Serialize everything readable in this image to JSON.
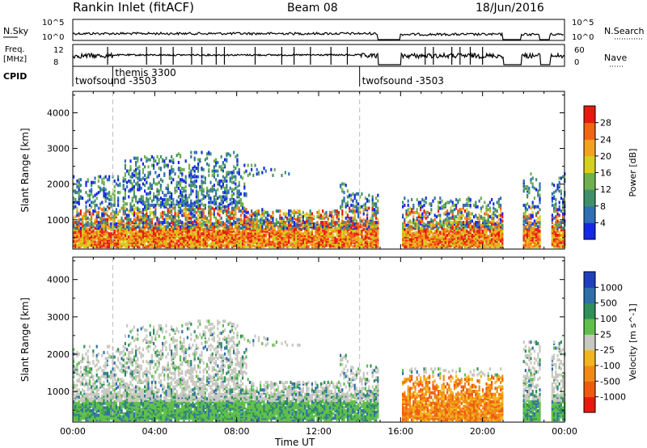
{
  "header": {
    "station": "Rankin Inlet (fitACF)",
    "beam": "Beam 08",
    "date": "18/Jun/2016"
  },
  "aux": {
    "nsky_label": "N.Sky",
    "nsearch_label": "N.Search",
    "freq_label_line1": "Freq.",
    "freq_label_line2": "[MHz]",
    "nave_label": "Nave",
    "cpid_label": "CPID",
    "left_ticks_top": [
      "10^5",
      "10^0"
    ],
    "right_ticks_top": [
      "10^5",
      "10^0"
    ],
    "left_ticks_freq": [
      "12",
      "8"
    ],
    "right_ticks_nave": [
      "60",
      "0"
    ],
    "cpid_entries": [
      {
        "name": "twofsound -3503",
        "start_hour": 0.0
      },
      {
        "name": "themis 3300",
        "start_hour": 1.95
      },
      {
        "name": "twofsound -3503",
        "start_hour": 14.0
      }
    ]
  },
  "chart_data": [
    {
      "type": "heatmap",
      "title": "Power",
      "xlabel": "Time UT",
      "ylabel": "Slant Range [km]",
      "colorbar_label": "Power [dB]",
      "x_ticks": [
        "00:00",
        "04:00",
        "08:00",
        "12:00",
        "16:00",
        "20:00",
        "00:00"
      ],
      "xlim_hours": [
        0,
        24
      ],
      "y_ticks": [
        1000,
        2000,
        3000,
        4000
      ],
      "ylim": [
        180,
        4600
      ],
      "colorbar_ticks": [
        4,
        8,
        12,
        16,
        20,
        24,
        28
      ],
      "colorbar_colors": [
        "#1428e6",
        "#2f6fb5",
        "#3f8f6a",
        "#6fb04e",
        "#d4d11e",
        "#f2a21c",
        "#f06414",
        "#e81a10"
      ],
      "data_gaps_hours": [
        [
          14.9,
          16.0
        ],
        [
          21.0,
          21.9
        ],
        [
          22.8,
          23.3
        ]
      ]
    },
    {
      "type": "heatmap",
      "title": "Velocity",
      "xlabel": "Time UT",
      "ylabel": "Slant Range [km]",
      "colorbar_label": "Velocity [m s^-1]",
      "x_ticks": [
        "00:00",
        "04:00",
        "08:00",
        "12:00",
        "16:00",
        "20:00",
        "00:00"
      ],
      "xlim_hours": [
        0,
        24
      ],
      "y_ticks": [
        1000,
        2000,
        3000,
        4000
      ],
      "ylim": [
        180,
        4600
      ],
      "colorbar_ticks": [
        1000,
        500,
        100,
        25,
        -25,
        -100,
        -500,
        -1000
      ],
      "colorbar_colors": [
        "#1f3fbf",
        "#2e6fa8",
        "#2f8f5a",
        "#5fbf4a",
        "#c8c8c0",
        "#f2b51c",
        "#f08a14",
        "#f05a10",
        "#e81a10"
      ],
      "data_gaps_hours": [
        [
          14.9,
          16.0
        ],
        [
          21.0,
          21.9
        ],
        [
          22.8,
          23.3
        ]
      ]
    }
  ]
}
